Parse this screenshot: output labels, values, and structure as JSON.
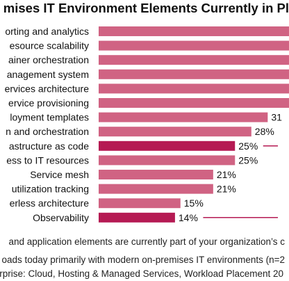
{
  "title": "mises IT Environment Elements Currently in Pl",
  "question": "and application elements are currently part of your organization’s c",
  "source_line1": "oads today primarily with modern on-premises IT environments (n=2",
  "source_line2": "erprise: Cloud, Hosting & Managed Services, Workload Placement 20",
  "colors": {
    "bar": "#d06383",
    "highlight": "#b51a53",
    "accent_line": "#b51a53"
  },
  "chart_data": {
    "type": "bar",
    "orientation": "horizontal",
    "categories": [
      "orting and analytics",
      "esource scalability",
      "ainer orchestration",
      "anagement system",
      "ervices architecture",
      "ervice provisioning",
      "loyment templates",
      "n and orchestration",
      "astructure as code",
      "ess to IT resources",
      "Service mesh",
      "utilization tracking",
      "erless architecture",
      "Observability"
    ],
    "values": [
      null,
      null,
      null,
      null,
      null,
      null,
      31,
      28,
      25,
      25,
      21,
      21,
      15,
      14
    ],
    "value_labels": [
      "",
      "",
      "",
      "",
      "",
      "",
      "31",
      "28%",
      "25%",
      "25%",
      "21%",
      "21%",
      "15%",
      "14%"
    ],
    "highlighted": [
      false,
      false,
      false,
      false,
      false,
      false,
      false,
      false,
      true,
      false,
      false,
      false,
      false,
      true
    ],
    "title": "mises IT Environment Elements Currently in Pl",
    "xlabel": "",
    "ylabel": ""
  }
}
